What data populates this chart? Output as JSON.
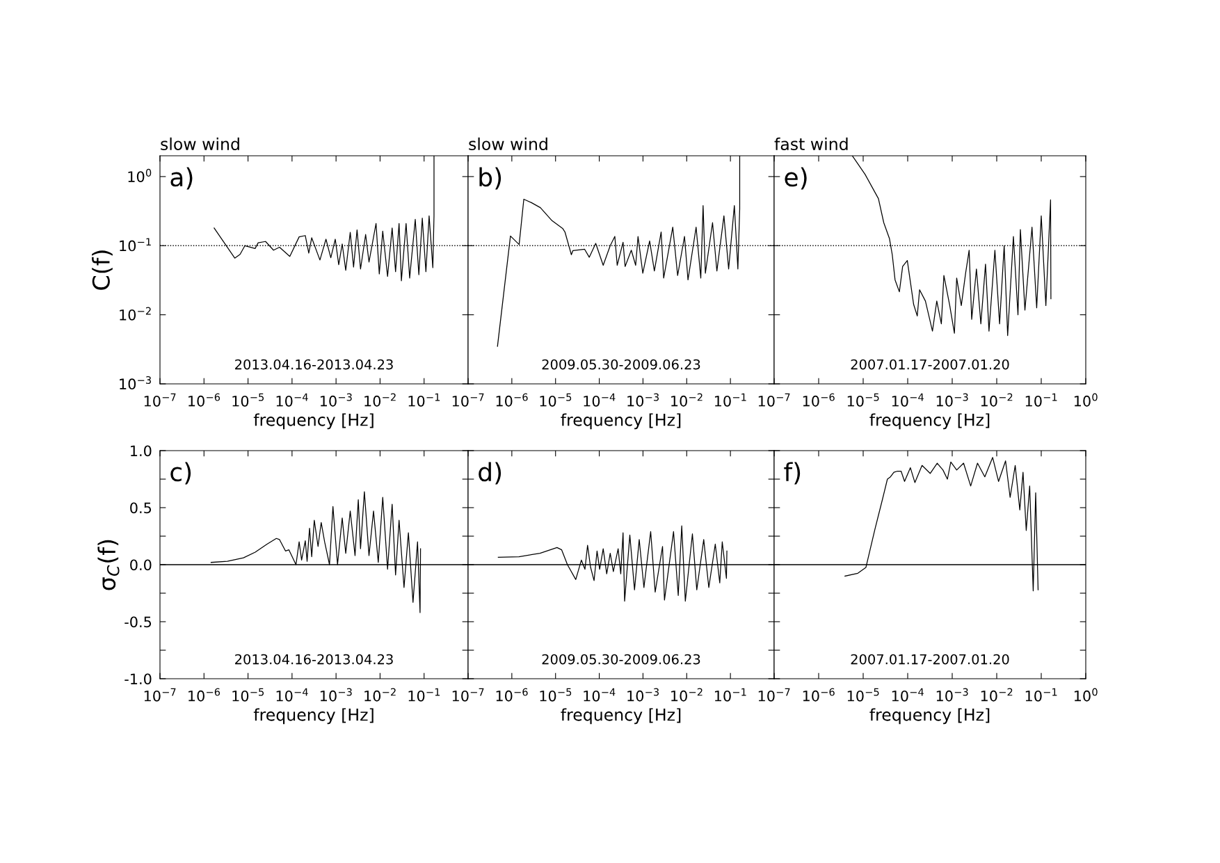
{
  "chart_data": [
    {
      "type": "line",
      "title": "slow wind",
      "xlabel": "frequency [Hz]",
      "ylabel": "C(f)",
      "log": "xy",
      "tick_labels": true,
      "annotations": [
        "a)",
        "2013.04.16-2013.04.23"
      ],
      "xlim": [
        1e-07,
        1
      ],
      "ylim": [
        0.001,
        2
      ],
      "xticks": [
        {
          "value": 1e-07,
          "label": "10$^{−7}$"
        },
        {
          "value": 1e-06,
          "label": "10$^{−6}$"
        },
        {
          "value": 1e-05,
          "label": "10$^{−5}$"
        },
        {
          "value": 0.0001,
          "label": "10$^{−4}$"
        },
        {
          "value": 0.001,
          "label": "10$^{−3}$"
        },
        {
          "value": 0.01,
          "label": "10$^{−2}$"
        },
        {
          "value": 0.1,
          "label": "10$^{−1}$"
        }
      ],
      "yticks": [
        {
          "value": 0.001,
          "label": "10$^{−3}$"
        },
        {
          "value": 0.01,
          "label": "10$^{−2}$"
        },
        {
          "value": 0.1,
          "label": "10$^{−1}$"
        },
        {
          "value": 1,
          "label": "10$^{0}$"
        }
      ],
      "ref_lines": [
        {
          "axis": "y",
          "value": 0.1,
          "line_style": "dotted",
          "color": "#000000"
        }
      ],
      "series": [
        {
          "color": "#000000",
          "x": [
            1.7e-06,
            5e-06,
            6.6e-06,
            8.5e-06,
            1.45e-05,
            1.7e-05,
            2.5e-05,
            3.8e-05,
            5.2e-05,
            8.9e-05,
            0.000145,
            0.0002,
            0.00024,
            0.00028,
            0.00043,
            0.00059,
            0.00076,
            0.00096,
            0.00115,
            0.00138,
            0.00166,
            0.0021,
            0.0025,
            0.003,
            0.0036,
            0.0047,
            0.0056,
            0.0081,
            0.0096,
            0.0115,
            0.0148,
            0.0188,
            0.0225,
            0.027,
            0.0305,
            0.039,
            0.047,
            0.063,
            0.076,
            0.091,
            0.11,
            0.13,
            0.158,
            0.168,
            0.168
          ],
          "values": [
            0.18,
            0.066,
            0.075,
            0.1,
            0.091,
            0.11,
            0.115,
            0.086,
            0.095,
            0.07,
            0.134,
            0.14,
            0.078,
            0.13,
            0.062,
            0.124,
            0.067,
            0.124,
            0.053,
            0.106,
            0.044,
            0.156,
            0.049,
            0.169,
            0.046,
            0.145,
            0.058,
            0.21,
            0.039,
            0.162,
            0.036,
            0.18,
            0.042,
            0.21,
            0.031,
            0.21,
            0.034,
            0.24,
            0.038,
            0.25,
            0.042,
            0.27,
            0.048,
            0.27,
            2.0
          ]
        }
      ]
    },
    {
      "type": "line",
      "title": "slow wind",
      "xlabel": "frequency [Hz]",
      "log": "xy",
      "tick_labels": "x",
      "annotations": [
        "b)",
        "2009.05.30-2009.06.23"
      ],
      "xlim": [
        1e-07,
        1
      ],
      "ylim": [
        0.001,
        2
      ],
      "xticks": [
        {
          "value": 1e-07,
          "label": "10$^{−7}$"
        },
        {
          "value": 1e-06,
          "label": "10$^{−6}$"
        },
        {
          "value": 1e-05,
          "label": "10$^{−5}$"
        },
        {
          "value": 0.0001,
          "label": "10$^{−4}$"
        },
        {
          "value": 0.001,
          "label": "10$^{−3}$"
        },
        {
          "value": 0.01,
          "label": "10$^{−2}$"
        },
        {
          "value": 0.1,
          "label": "10$^{−1}$"
        }
      ],
      "yticks": [
        {
          "value": 0.001,
          "label": null
        },
        {
          "value": 0.01,
          "label": null
        },
        {
          "value": 0.1,
          "label": null
        },
        {
          "value": 1,
          "label": null
        }
      ],
      "ref_lines": [
        {
          "axis": "y",
          "value": 0.1,
          "line_style": "dotted",
          "color": "#000000"
        }
      ],
      "series": [
        {
          "color": "#000000",
          "x": [
            4.7e-07,
            9.3e-07,
            1.47e-06,
            1.88e-06,
            2.8e-06,
            4.5e-06,
            8.3e-06,
            1.45e-05,
            1.64e-05,
            2.3e-05,
            2.5e-05,
            4.6e-05,
            5.9e-05,
            8.3e-05,
            0.000123,
            0.000178,
            0.000227,
            0.000257,
            0.00035,
            0.00039,
            0.00054,
            0.00068,
            0.00077,
            0.00099,
            0.00142,
            0.00182,
            0.0026,
            0.00297,
            0.0048,
            0.0062,
            0.0089,
            0.0107,
            0.0164,
            0.021,
            0.0237,
            0.0267,
            0.039,
            0.049,
            0.071,
            0.091,
            0.123,
            0.148,
            0.163,
            0.163
          ],
          "values": [
            0.0035,
            0.138,
            0.104,
            0.47,
            0.42,
            0.355,
            0.23,
            0.178,
            0.158,
            0.074,
            0.085,
            0.089,
            0.068,
            0.108,
            0.052,
            0.1,
            0.136,
            0.052,
            0.112,
            0.05,
            0.086,
            0.052,
            0.136,
            0.04,
            0.117,
            0.043,
            0.158,
            0.034,
            0.185,
            0.037,
            0.136,
            0.032,
            0.185,
            0.034,
            0.38,
            0.04,
            0.215,
            0.043,
            0.27,
            0.046,
            0.38,
            0.046,
            0.34,
            2.0
          ]
        }
      ]
    },
    {
      "type": "line",
      "title": "fast wind",
      "xlabel": "frequency [Hz]",
      "log": "xy",
      "tick_labels": "x",
      "annotations": [
        "e)",
        "2007.01.17-2007.01.20"
      ],
      "xlim": [
        1e-07,
        1
      ],
      "ylim": [
        0.001,
        2
      ],
      "xticks": [
        {
          "value": 1e-07,
          "label": "10$^{−7}$"
        },
        {
          "value": 1e-06,
          "label": "10$^{−6}$"
        },
        {
          "value": 1e-05,
          "label": "10$^{−5}$"
        },
        {
          "value": 0.0001,
          "label": "10$^{−4}$"
        },
        {
          "value": 0.001,
          "label": "10$^{−3}$"
        },
        {
          "value": 0.01,
          "label": "10$^{−2}$"
        },
        {
          "value": 0.1,
          "label": "10$^{−1}$"
        },
        {
          "value": 1,
          "label": "10$^{0}$"
        }
      ],
      "yticks": [
        {
          "value": 0.001,
          "label": null
        },
        {
          "value": 0.01,
          "label": null
        },
        {
          "value": 0.1,
          "label": null
        },
        {
          "value": 1,
          "label": null
        }
      ],
      "ref_lines": [
        {
          "axis": "y",
          "value": 0.1,
          "line_style": "dotted",
          "color": "#000000"
        }
      ],
      "series": [
        {
          "color": "#000000",
          "x": [
            5.7e-06,
            1.1e-05,
            2.2e-05,
            2.9e-05,
            3.9e-05,
            4.5e-05,
            5.2e-05,
            6.5e-05,
            7.7e-05,
            9.8e-05,
            0.000136,
            0.000164,
            0.000185,
            0.00025,
            0.00036,
            0.00045,
            0.00057,
            0.00065,
            0.00088,
            0.00112,
            0.00126,
            0.0016,
            0.002,
            0.0024,
            0.00274,
            0.0035,
            0.0044,
            0.0056,
            0.0067,
            0.0091,
            0.0116,
            0.0147,
            0.0176,
            0.0237,
            0.03,
            0.034,
            0.043,
            0.062,
            0.079,
            0.1,
            0.127,
            0.162,
            0.165
          ],
          "values": [
            2.0,
            1.08,
            0.48,
            0.215,
            0.126,
            0.074,
            0.032,
            0.0215,
            0.05,
            0.061,
            0.0141,
            0.0096,
            0.023,
            0.0158,
            0.0058,
            0.0158,
            0.0074,
            0.037,
            0.0136,
            0.0054,
            0.034,
            0.0136,
            0.04,
            0.086,
            0.0086,
            0.046,
            0.0074,
            0.054,
            0.0058,
            0.086,
            0.0074,
            0.1,
            0.005,
            0.136,
            0.01,
            0.171,
            0.0117,
            0.185,
            0.0126,
            0.27,
            0.0136,
            0.46,
            0.017
          ]
        }
      ]
    },
    {
      "type": "line",
      "xlabel": "frequency [Hz]",
      "ylabel": "σ$_{C}$(f)",
      "log": "x",
      "tick_labels": true,
      "annotations": [
        "c)",
        "2013.04.16-2013.04.23"
      ],
      "xlim": [
        1e-07,
        1
      ],
      "ylim": [
        -1.0,
        1.0
      ],
      "xticks": [
        {
          "value": 1e-07,
          "label": "10$^{−7}$"
        },
        {
          "value": 1e-06,
          "label": "10$^{−6}$"
        },
        {
          "value": 1e-05,
          "label": "10$^{−5}$"
        },
        {
          "value": 0.0001,
          "label": "10$^{−4}$"
        },
        {
          "value": 0.001,
          "label": "10$^{−3}$"
        },
        {
          "value": 0.01,
          "label": "10$^{−2}$"
        },
        {
          "value": 0.1,
          "label": "10$^{−1}$"
        }
      ],
      "yticks": [
        {
          "value": -1.0,
          "label": "-1.0"
        },
        {
          "value": -0.75,
          "label": null
        },
        {
          "value": -0.5,
          "label": "-0.5"
        },
        {
          "value": -0.25,
          "label": null
        },
        {
          "value": 0,
          "label": "0.0"
        },
        {
          "value": 0.25,
          "label": null
        },
        {
          "value": 0.5,
          "label": "0.5"
        },
        {
          "value": 0.75,
          "label": null
        },
        {
          "value": 1.0,
          "label": "1.0"
        }
      ],
      "ref_lines": [
        {
          "axis": "y",
          "value": 0,
          "line_style": "solid",
          "color": "#000000"
        }
      ],
      "series": [
        {
          "color": "#000000",
          "x": [
            1.45e-06,
            3.4e-06,
            7.9e-06,
            1.46e-05,
            2.7e-05,
            4.4e-05,
            5.2e-05,
            7.1e-05,
            8.5e-05,
            0.000123,
            0.000145,
            0.000165,
            0.0002,
            0.00022,
            0.00025,
            0.00028,
            0.00032,
            0.00039,
            0.00046,
            0.00055,
            0.00071,
            0.00085,
            0.00108,
            0.00138,
            0.00166,
            0.0021,
            0.0027,
            0.0032,
            0.0036,
            0.0044,
            0.0056,
            0.0071,
            0.0091,
            0.0115,
            0.0148,
            0.0188,
            0.0225,
            0.027,
            0.035,
            0.044,
            0.056,
            0.071,
            0.081,
            0.083
          ],
          "values": [
            0.02,
            0.03,
            0.06,
            0.11,
            0.18,
            0.23,
            0.22,
            0.12,
            0.13,
            0.0,
            0.2,
            0.04,
            0.21,
            0.03,
            0.32,
            0.07,
            0.39,
            0.16,
            0.37,
            0.2,
            0.0,
            0.51,
            0.0,
            0.41,
            0.1,
            0.47,
            0.08,
            0.57,
            0.14,
            0.64,
            0.08,
            0.47,
            0.02,
            0.59,
            -0.04,
            0.53,
            -0.09,
            0.39,
            -0.2,
            0.28,
            -0.33,
            0.2,
            -0.42,
            0.14
          ]
        }
      ]
    },
    {
      "type": "line",
      "xlabel": "frequency [Hz]",
      "log": "x",
      "tick_labels": "x",
      "annotations": [
        "d)",
        "2009.05.30-2009.06.23"
      ],
      "xlim": [
        1e-07,
        1
      ],
      "ylim": [
        -1.0,
        1.0
      ],
      "xticks": [
        {
          "value": 1e-07,
          "label": "10$^{−7}$"
        },
        {
          "value": 1e-06,
          "label": "10$^{−6}$"
        },
        {
          "value": 1e-05,
          "label": "10$^{−5}$"
        },
        {
          "value": 0.0001,
          "label": "10$^{−4}$"
        },
        {
          "value": 0.001,
          "label": "10$^{−3}$"
        },
        {
          "value": 0.01,
          "label": "10$^{−2}$"
        },
        {
          "value": 0.1,
          "label": "10$^{−1}$"
        }
      ],
      "yticks": [
        {
          "value": -1.0,
          "label": null
        },
        {
          "value": -0.75,
          "label": null
        },
        {
          "value": -0.5,
          "label": null
        },
        {
          "value": -0.25,
          "label": null
        },
        {
          "value": 0,
          "label": null
        },
        {
          "value": 0.25,
          "label": null
        },
        {
          "value": 0.5,
          "label": null
        },
        {
          "value": 0.75,
          "label": null
        },
        {
          "value": 1.0,
          "label": null
        }
      ],
      "ref_lines": [
        {
          "axis": "y",
          "value": 0,
          "line_style": "solid",
          "color": "#000000"
        }
      ],
      "series": [
        {
          "color": "#000000",
          "x": [
            4.9e-07,
            1.46e-06,
            4.4e-06,
            1.08e-05,
            1.38e-05,
            1.87e-05,
            2.9e-05,
            3.9e-05,
            4.7e-05,
            5.4e-05,
            6.3e-05,
            7.6e-05,
            8.9e-05,
            0.000102,
            0.000123,
            0.000148,
            0.000178,
            0.00021,
            0.00027,
            0.00031,
            0.00035,
            0.00038,
            0.0005,
            0.00064,
            0.00082,
            0.00105,
            0.0015,
            0.0019,
            0.0028,
            0.0031,
            0.005,
            0.0064,
            0.0077,
            0.0093,
            0.0135,
            0.017,
            0.0245,
            0.032,
            0.045,
            0.057,
            0.065,
            0.081,
            0.083
          ],
          "values": [
            0.065,
            0.07,
            0.1,
            0.15,
            0.13,
            0.0,
            -0.13,
            0.04,
            -0.04,
            0.17,
            -0.02,
            -0.14,
            0.12,
            -0.04,
            0.14,
            -0.08,
            0.1,
            -0.06,
            0.14,
            -0.08,
            0.28,
            -0.32,
            0.26,
            -0.22,
            0.22,
            -0.2,
            0.29,
            -0.24,
            0.16,
            -0.31,
            0.29,
            -0.27,
            0.34,
            -0.32,
            0.27,
            -0.22,
            0.22,
            -0.2,
            0.18,
            -0.16,
            0.2,
            -0.12,
            0.12
          ]
        }
      ]
    },
    {
      "type": "line",
      "xlabel": "frequency [Hz]",
      "log": "x",
      "tick_labels": "x",
      "annotations": [
        "f)",
        "2007.01.17-2007.01.20"
      ],
      "xlim": [
        1e-07,
        1
      ],
      "ylim": [
        -1.0,
        1.0
      ],
      "xticks": [
        {
          "value": 1e-07,
          "label": "10$^{−7}$"
        },
        {
          "value": 1e-06,
          "label": "10$^{−6}$"
        },
        {
          "value": 1e-05,
          "label": "10$^{−5}$"
        },
        {
          "value": 0.0001,
          "label": "10$^{−4}$"
        },
        {
          "value": 0.001,
          "label": "10$^{−3}$"
        },
        {
          "value": 0.01,
          "label": "10$^{−2}$"
        },
        {
          "value": 0.1,
          "label": "10$^{−1}$"
        },
        {
          "value": 1,
          "label": "10$^{0}$"
        }
      ],
      "yticks": [
        {
          "value": -1.0,
          "label": null
        },
        {
          "value": -0.75,
          "label": null
        },
        {
          "value": -0.5,
          "label": null
        },
        {
          "value": -0.25,
          "label": null
        },
        {
          "value": 0,
          "label": null
        },
        {
          "value": 0.25,
          "label": null
        },
        {
          "value": 0.5,
          "label": null
        },
        {
          "value": 0.75,
          "label": null
        },
        {
          "value": 1.0,
          "label": null
        }
      ],
      "ref_lines": [
        {
          "axis": "y",
          "value": 0,
          "line_style": "solid",
          "color": "#000000"
        }
      ],
      "series": [
        {
          "color": "#000000",
          "x": [
            3.9e-06,
            7.6e-06,
            1.15e-05,
            1.86e-05,
            2.7e-05,
            3.5e-05,
            4.1e-05,
            4.9e-05,
            5.9e-05,
            7.1e-05,
            8.5e-05,
            0.000115,
            0.000145,
            0.00021,
            0.00032,
            0.00046,
            0.00062,
            0.00078,
            0.00093,
            0.00126,
            0.0018,
            0.0026,
            0.0037,
            0.0054,
            0.0081,
            0.011,
            0.0158,
            0.02,
            0.026,
            0.033,
            0.039,
            0.046,
            0.055,
            0.066,
            0.075,
            0.085
          ],
          "values": [
            -0.1,
            -0.075,
            -0.025,
            0.32,
            0.57,
            0.75,
            0.77,
            0.81,
            0.82,
            0.82,
            0.73,
            0.85,
            0.72,
            0.87,
            0.8,
            0.89,
            0.83,
            0.75,
            0.9,
            0.83,
            0.89,
            0.69,
            0.89,
            0.77,
            0.94,
            0.73,
            0.91,
            0.59,
            0.87,
            0.48,
            0.81,
            0.3,
            0.69,
            -0.23,
            0.63,
            -0.22
          ]
        }
      ]
    }
  ]
}
